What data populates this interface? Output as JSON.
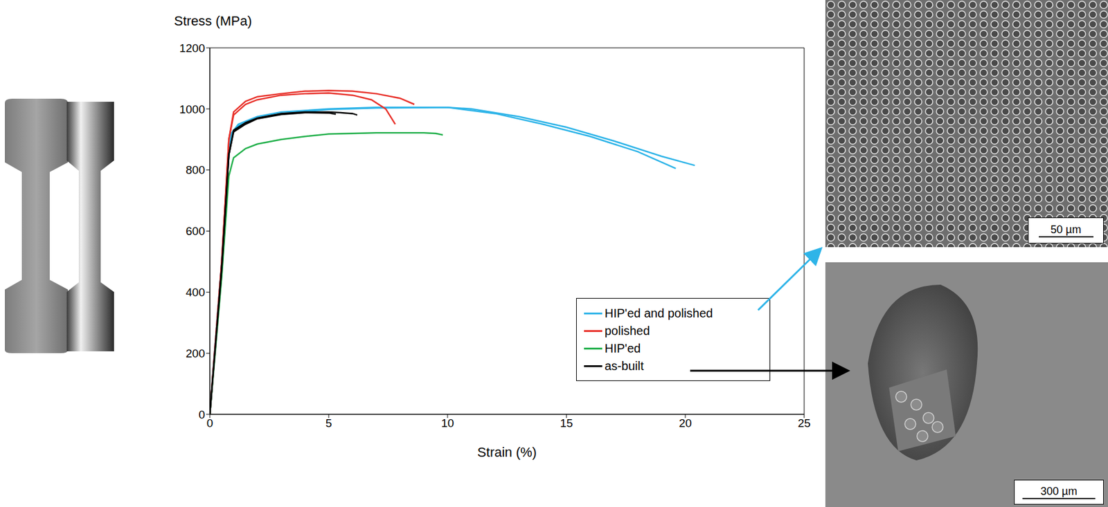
{
  "chart_data": {
    "type": "line",
    "x_label": "Strain (%)",
    "y_label": "Stress (MPa)",
    "xlim": [
      0,
      25
    ],
    "ylim": [
      0,
      1200
    ],
    "xticks": [
      0,
      5,
      10,
      15,
      20,
      25
    ],
    "yticks": [
      0,
      200,
      400,
      600,
      800,
      1000,
      1200
    ],
    "grid": false,
    "legend": "lower right",
    "scale_bars": [
      "50 µm",
      "300 µm"
    ],
    "series": [
      {
        "name": "HIP'ed and polished",
        "color": "#2eb4e8",
        "curves": [
          {
            "x": [
              0,
              0.5,
              0.8,
              0.9,
              1.2,
              2,
              3,
              5,
              7,
              9,
              10,
              11,
              13,
              15,
              17,
              19,
              20.4
            ],
            "values": [
              0,
              500,
              850,
              920,
              950,
              975,
              990,
              1000,
              1005,
              1005,
              1005,
              1000,
              975,
              940,
              895,
              845,
              815
            ]
          },
          {
            "x": [
              0,
              0.5,
              0.8,
              0.9,
              1.2,
              2,
              3,
              5,
              7,
              9,
              10,
              12,
              14,
              16,
              18,
              19.6
            ],
            "values": [
              0,
              500,
              850,
              915,
              945,
              970,
              985,
              998,
              1003,
              1004,
              1005,
              985,
              950,
              910,
              860,
              805
            ]
          }
        ]
      },
      {
        "name": "polished",
        "color": "#e8312a",
        "curves": [
          {
            "x": [
              0,
              0.5,
              0.8,
              1.0,
              1.5,
              2,
              3,
              4,
              5,
              6,
              7,
              8,
              8.6
            ],
            "values": [
              0,
              500,
              900,
              990,
              1025,
              1040,
              1050,
              1058,
              1060,
              1058,
              1050,
              1035,
              1015
            ]
          },
          {
            "x": [
              0,
              0.5,
              0.8,
              1.0,
              1.5,
              2,
              3,
              4,
              5,
              6,
              6.8,
              7.4,
              7.8
            ],
            "values": [
              0,
              500,
              900,
              980,
              1015,
              1030,
              1045,
              1050,
              1052,
              1045,
              1030,
              1000,
              950
            ]
          }
        ]
      },
      {
        "name": "HIP'ed",
        "color": "#22b04b",
        "curves": [
          {
            "x": [
              0,
              0.5,
              0.8,
              1.0,
              1.5,
              2,
              3,
              4,
              5,
              6,
              7,
              8,
              9,
              9.5,
              9.8
            ],
            "values": [
              0,
              450,
              780,
              840,
              870,
              885,
              900,
              910,
              918,
              920,
              922,
              922,
              922,
              920,
              915
            ]
          }
        ]
      },
      {
        "name": "as-built",
        "color": "#000000",
        "curves": [
          {
            "x": [
              0,
              0.5,
              0.8,
              1.0,
              1.5,
              2,
              3,
              4,
              5,
              5.5,
              6,
              6.2
            ],
            "values": [
              0,
              480,
              850,
              930,
              955,
              970,
              985,
              990,
              990,
              988,
              985,
              980
            ]
          },
          {
            "x": [
              0,
              0.5,
              0.8,
              1.0,
              1.5,
              2,
              3,
              4,
              5,
              5.3
            ],
            "values": [
              0,
              480,
              850,
              925,
              950,
              968,
              982,
              988,
              987,
              983
            ]
          }
        ]
      }
    ]
  }
}
